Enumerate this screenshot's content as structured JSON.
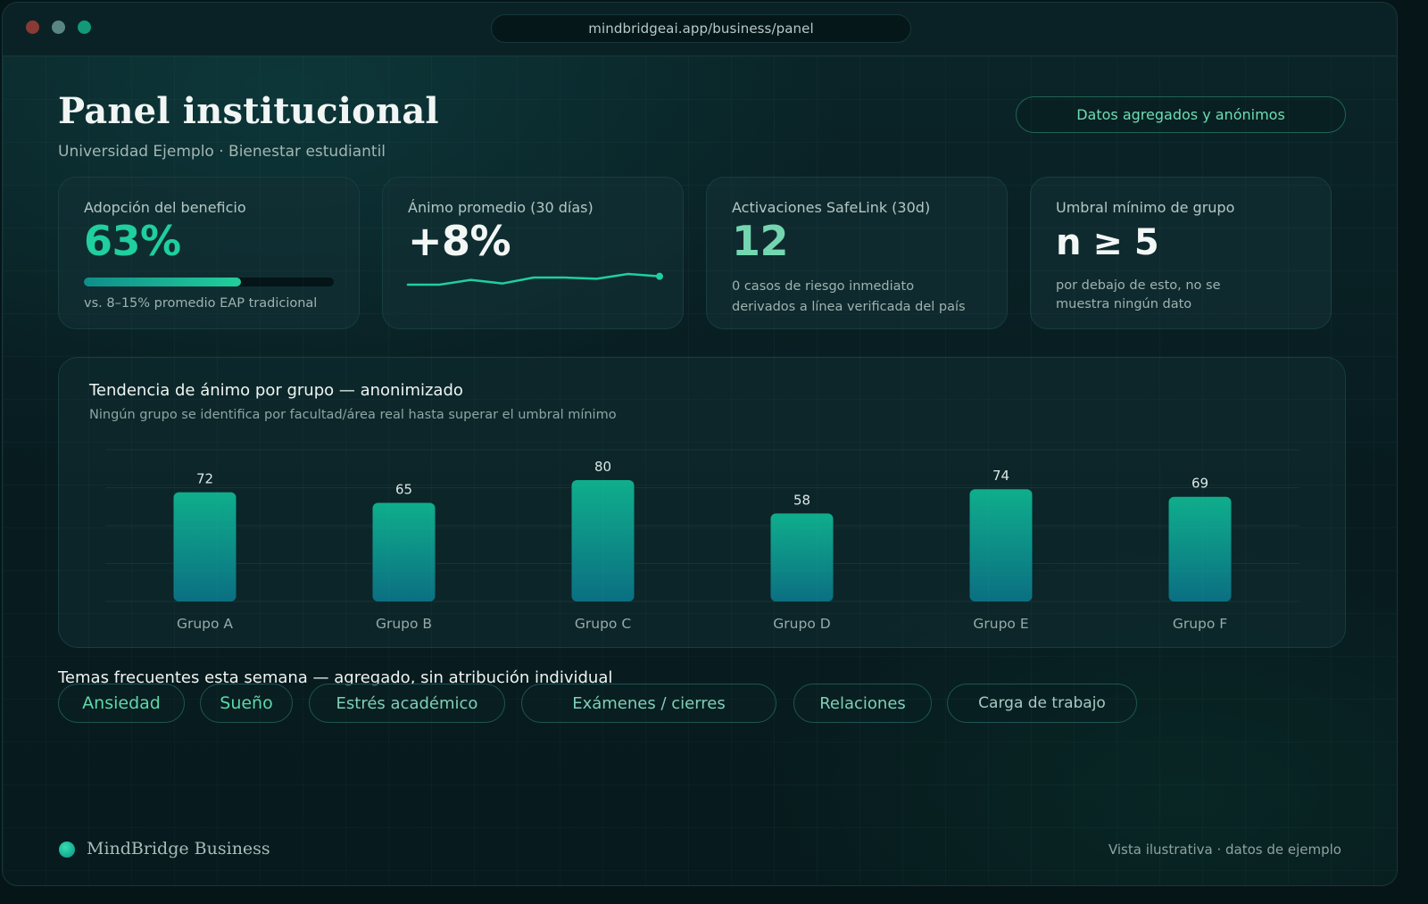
{
  "browser": {
    "url": "mindbridgeai.app/business/panel"
  },
  "header": {
    "title": "Panel institucional",
    "subtitle": "Universidad Ejemplo · Bienestar estudiantil",
    "privacy_badge": "Datos agregados y anónimos"
  },
  "stats": {
    "adoption": {
      "label": "Adopción del beneficio",
      "value": "63%",
      "progress": 0.63,
      "note": "vs. 8–15% promedio EAP tradicional"
    },
    "mood": {
      "label": "Ánimo promedio (30 días)",
      "value": "+8%"
    },
    "safelink": {
      "label": "Activaciones SafeLink (30d)",
      "value": "12",
      "note_line1": "0 casos de riesgo inmediato",
      "note_line2": "derivados a línea verificada del país"
    },
    "threshold": {
      "label": "Umbral mínimo de grupo",
      "value": "n ≥ 5",
      "note_line1": "por debajo de esto, no se",
      "note_line2": "muestra ningún dato"
    }
  },
  "mood_chart": {
    "title": "Tendencia de ánimo por grupo — anonimizado",
    "subtitle": "Ningún grupo se identifica por facultad/área real hasta superar el umbral mínimo"
  },
  "chart_data": [
    {
      "type": "line",
      "values": [
        0,
        0,
        2,
        0.5,
        3,
        3,
        2.5,
        4.5,
        3.5
      ],
      "accent": "#1fcf9e"
    },
    {
      "type": "bar",
      "categories": [
        "Grupo A",
        "Grupo B",
        "Grupo C",
        "Grupo D",
        "Grupo E",
        "Grupo F"
      ],
      "values": [
        72,
        65,
        80,
        58,
        74,
        69
      ],
      "ylim": [
        0,
        100
      ],
      "grid": true,
      "bar_color_top": "#0fae8c",
      "bar_color_bottom": "#0b6f82"
    }
  ],
  "topics": {
    "heading": "Temas frecuentes esta semana — agregado, sin atribución individual",
    "items": [
      "Ansiedad",
      "Sueño",
      "Estrés académico",
      "Exámenes / cierres",
      "Relaciones",
      "Carga de trabajo"
    ]
  },
  "footer": {
    "brand": "MindBridge Business",
    "note": "Vista ilustrativa · datos de ejemplo"
  },
  "colors": {
    "accent": "#1fcf9e",
    "background": "#081c20"
  }
}
